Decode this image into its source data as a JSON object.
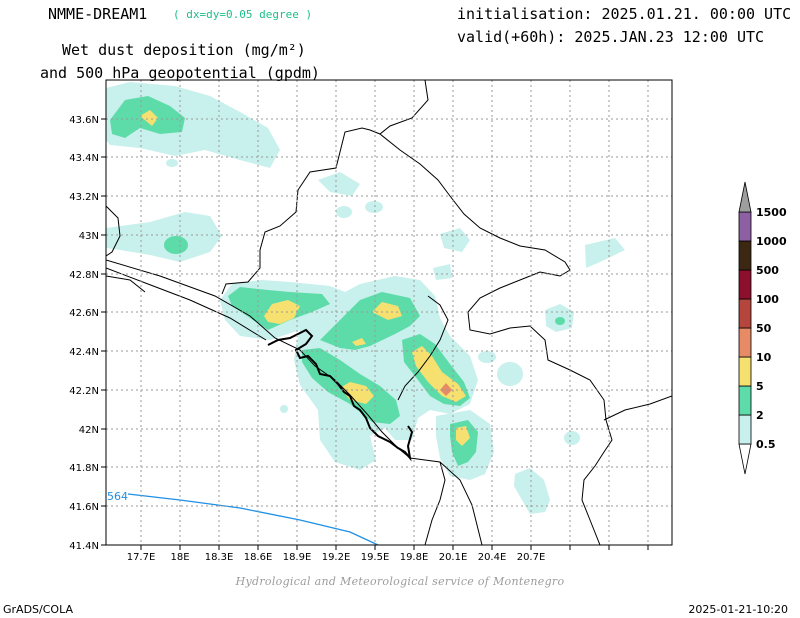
{
  "header": {
    "model_name": "NMME-DREAM1",
    "resolution": "( dx=dy=0.05 degree )",
    "title_line1": "Wet dust deposition (mg/m²)",
    "title_line2": "and 500 hPa geopotential (gpdm)",
    "initialisation": "initialisation: 2025.01.21. 00:00 UTC",
    "valid": "valid(+60h): 2025.JAN.23 12:00 UTC"
  },
  "map": {
    "lon_ticks": [
      "17.7E",
      "18E",
      "18.3E",
      "18.6E",
      "18.9E",
      "19.2E",
      "19.5E",
      "19.8E",
      "20.1E",
      "20.4E",
      "20.7E"
    ],
    "lat_ticks": [
      "43.6N",
      "43.4N",
      "43.2N",
      "43N",
      "42.8N",
      "42.6N",
      "42.4N",
      "42.2N",
      "42N",
      "41.8N",
      "41.6N",
      "41.4N"
    ],
    "contour_label": "564",
    "colors": {
      "contour": "#1e90e6",
      "border": "#000000",
      "grid": "#9a9a9a"
    }
  },
  "colorbar": {
    "levels": [
      {
        "label": "0.5",
        "color": "#c8f0ec"
      },
      {
        "label": "2",
        "color": "#5ddcaa"
      },
      {
        "label": "5",
        "color": "#f5e070"
      },
      {
        "label": "10",
        "color": "#e78a66"
      },
      {
        "label": "50",
        "color": "#b4463e"
      },
      {
        "label": "100",
        "color": "#8c0f2e"
      },
      {
        "label": "500",
        "color": "#3c2812"
      },
      {
        "label": "1000",
        "color": "#8c60a2"
      },
      {
        "label": "1500",
        "color": "#9e9e9e"
      }
    ]
  },
  "footer": {
    "credit": "Hydrological and Meteorological service of Montenegro",
    "left": "GrADS/COLA",
    "right": "2025-01-21-10:20"
  }
}
